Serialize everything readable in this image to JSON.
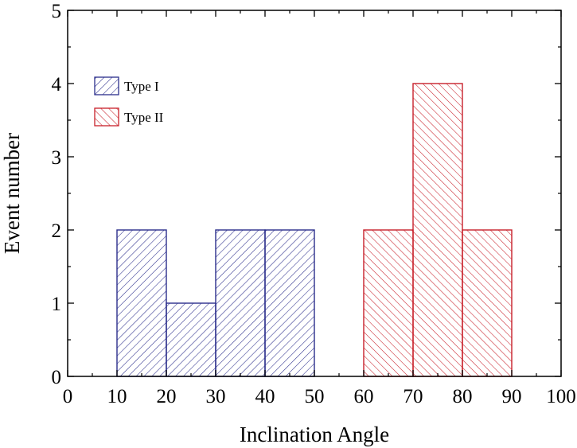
{
  "chart_data": {
    "type": "bar",
    "title": "",
    "xlabel": "Inclination Angle",
    "ylabel": "Event number",
    "xlim": [
      0,
      100
    ],
    "ylim": [
      0,
      5
    ],
    "xticks": [
      "0",
      "10",
      "20",
      "30",
      "40",
      "50",
      "60",
      "70",
      "80",
      "90",
      "100"
    ],
    "yticks": [
      "0",
      "1",
      "2",
      "3",
      "4",
      "5"
    ],
    "bin_width": 10,
    "legend_position": "top-left",
    "series": [
      {
        "name": "Type I",
        "color": "#2b2e8c",
        "hatch": "forward-diagonal",
        "bins": [
          {
            "start": 10,
            "end": 20,
            "value": 2
          },
          {
            "start": 20,
            "end": 30,
            "value": 1
          },
          {
            "start": 30,
            "end": 40,
            "value": 2
          },
          {
            "start": 40,
            "end": 50,
            "value": 2
          }
        ]
      },
      {
        "name": "Type II",
        "color": "#c8202a",
        "hatch": "back-diagonal",
        "bins": [
          {
            "start": 60,
            "end": 70,
            "value": 2
          },
          {
            "start": 70,
            "end": 80,
            "value": 4
          },
          {
            "start": 80,
            "end": 90,
            "value": 2
          }
        ]
      }
    ]
  }
}
